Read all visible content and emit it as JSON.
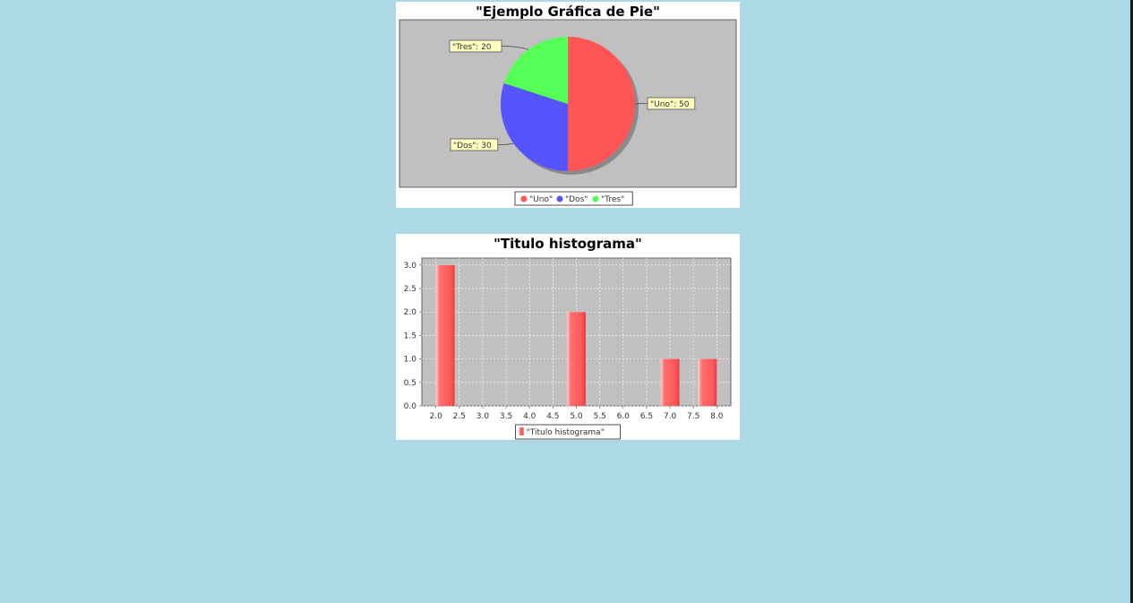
{
  "chart_data": [
    {
      "type": "pie",
      "title": "\"Ejemplo Gráfica de Pie\"",
      "slices": [
        {
          "name": "\"Uno\"",
          "value": 50,
          "label": "\"Uno\": 50",
          "color": "#ff5555"
        },
        {
          "name": "\"Dos\"",
          "value": 30,
          "label": "\"Dos\": 30",
          "color": "#5555ff"
        },
        {
          "name": "\"Tres\"",
          "value": 20,
          "label": "\"Tres\": 20",
          "color": "#55ff55"
        }
      ],
      "legend": "bottom"
    },
    {
      "type": "bar",
      "title": "\"Titulo histograma\"",
      "series": [
        {
          "name": "\"Titulo histograma\"",
          "color": "#ff5555",
          "bins": [
            {
              "x0": 2.0,
              "x1": 2.4,
              "value": 3
            },
            {
              "x0": 4.8,
              "x1": 5.2,
              "value": 2
            },
            {
              "x0": 6.8,
              "x1": 7.2,
              "value": 1
            },
            {
              "x0": 7.6,
              "x1": 8.0,
              "value": 1
            }
          ]
        }
      ],
      "xlim": [
        1.7,
        8.3
      ],
      "ylim": [
        0,
        3.15
      ],
      "xticks": [
        "2.0",
        "2.5",
        "3.0",
        "3.5",
        "4.0",
        "4.5",
        "5.0",
        "5.5",
        "6.0",
        "6.5",
        "7.0",
        "7.5",
        "8.0"
      ],
      "yticks": [
        "0.0",
        "0.5",
        "1.0",
        "1.5",
        "2.0",
        "2.5",
        "3.0"
      ],
      "grid": true,
      "legend": "bottom"
    }
  ]
}
